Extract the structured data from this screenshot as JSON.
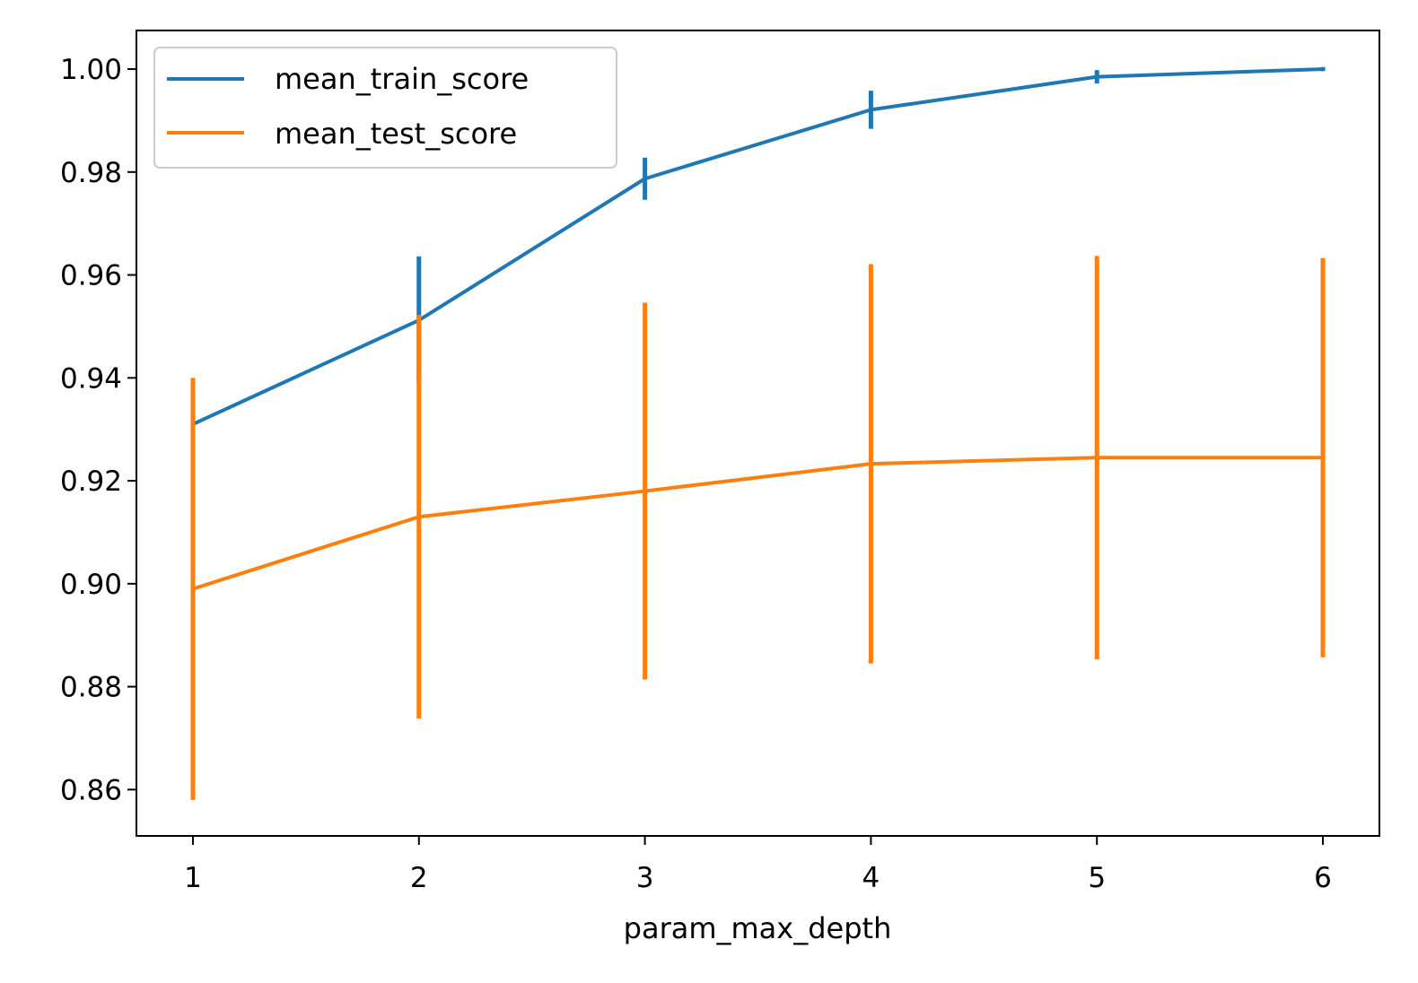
{
  "chart_data": {
    "type": "line",
    "title": "",
    "xlabel": "param_max_depth",
    "ylabel": "",
    "x": [
      1,
      2,
      3,
      4,
      5,
      6
    ],
    "xticks": [
      "1",
      "2",
      "3",
      "4",
      "5",
      "6"
    ],
    "xlim": [
      0.75,
      6.25
    ],
    "yticks": [
      "0.86",
      "0.88",
      "0.90",
      "0.92",
      "0.94",
      "0.96",
      "0.98",
      "1.00"
    ],
    "ylim": [
      0.851,
      1.0075
    ],
    "grid": false,
    "legend_position": "top-left",
    "series": [
      {
        "name": "mean_train_score",
        "color": "#1f77b4",
        "values": [
          0.931,
          0.9512,
          0.9787,
          0.9921,
          0.9985,
          1.0
        ],
        "error": [
          0.0003,
          0.0124,
          0.0041,
          0.0037,
          0.0013,
          0.0004
        ]
      },
      {
        "name": "mean_test_score",
        "color": "#ff7f0e",
        "values": [
          0.899,
          0.913,
          0.918,
          0.9233,
          0.9245,
          0.9245
        ],
        "error": [
          0.041,
          0.0392,
          0.0366,
          0.0388,
          0.0392,
          0.0388
        ]
      }
    ]
  }
}
